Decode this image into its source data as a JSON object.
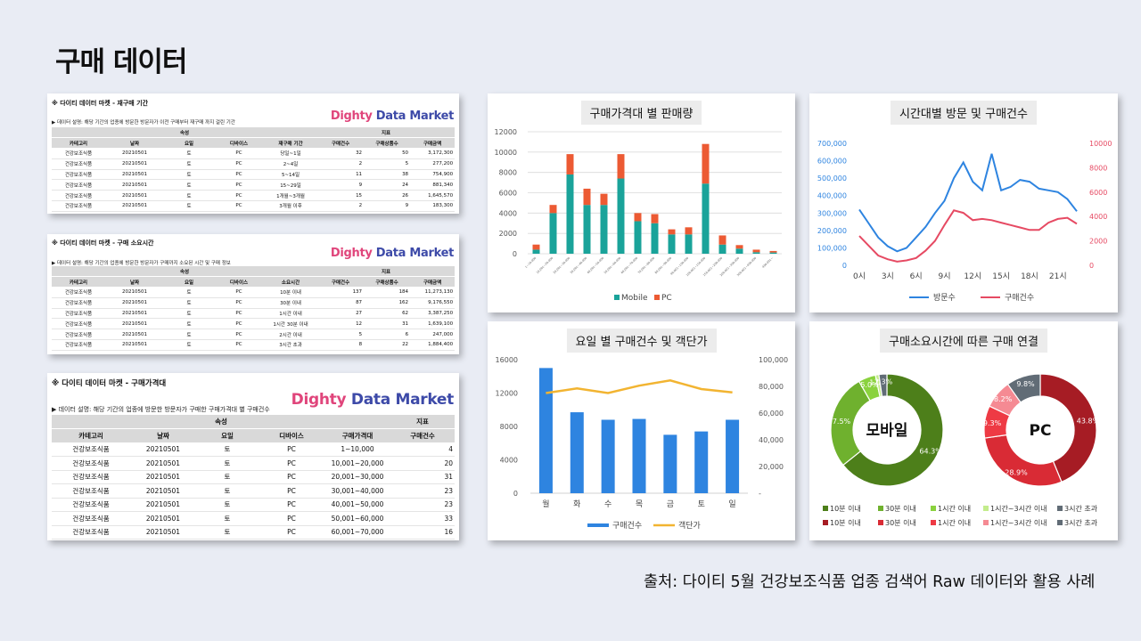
{
  "page": {
    "title": "구매 데이터",
    "source": "출처: 다이티 5월 건강보조식품 업종 검색어 Raw 데이터와 활용 사례"
  },
  "logo": {
    "part1": "Dighty",
    "part2": " Data Market"
  },
  "tables": [
    {
      "title": "※ 다이티 데이터 마켓 - 재구매 기간",
      "desc": "▶ 데이터 설명: 해당 기간의 업종에 방문한 방문자가 이전 구매부터 재구매 까지 걸린 기간",
      "group_headers": [
        "속성",
        "지표"
      ],
      "columns": [
        "카테고리",
        "날짜",
        "요일",
        "디바이스",
        "재구매 기간",
        "구매건수",
        "구매상품수",
        "구매금액"
      ],
      "rows": [
        [
          "건강보조식품",
          "20210501",
          "토",
          "PC",
          "당일~1일",
          "32",
          "50",
          "3,172,300"
        ],
        [
          "건강보조식품",
          "20210501",
          "토",
          "PC",
          "2~4일",
          "2",
          "5",
          "277,200"
        ],
        [
          "건강보조식품",
          "20210501",
          "토",
          "PC",
          "5~14일",
          "11",
          "38",
          "754,900"
        ],
        [
          "건강보조식품",
          "20210501",
          "토",
          "PC",
          "15~29일",
          "9",
          "24",
          "881,340"
        ],
        [
          "건강보조식품",
          "20210501",
          "토",
          "PC",
          "1개월~3개월",
          "15",
          "26",
          "1,645,570"
        ],
        [
          "건강보조식품",
          "20210501",
          "토",
          "PC",
          "3개월 이후",
          "2",
          "9",
          "183,300"
        ]
      ]
    },
    {
      "title": "※ 다이티 데이터 마켓 - 구매 소요시간",
      "desc": "▶ 데이터 설명: 해당 기간의 업종에 방문한 방문자가 구매까지 소요된 시간 및 구매 정보",
      "group_headers": [
        "속성",
        "지표"
      ],
      "columns": [
        "카테고리",
        "날짜",
        "요일",
        "디바이스",
        "소요시간",
        "구매건수",
        "구매상품수",
        "구매금액"
      ],
      "rows": [
        [
          "건강보조식품",
          "20210501",
          "토",
          "PC",
          "10분 이내",
          "137",
          "184",
          "11,273,130"
        ],
        [
          "건강보조식품",
          "20210501",
          "토",
          "PC",
          "30분 이내",
          "87",
          "162",
          "9,176,550"
        ],
        [
          "건강보조식품",
          "20210501",
          "토",
          "PC",
          "1시간 이내",
          "27",
          "62",
          "3,387,250"
        ],
        [
          "건강보조식품",
          "20210501",
          "토",
          "PC",
          "1시간 30분 이내",
          "12",
          "31",
          "1,639,100"
        ],
        [
          "건강보조식품",
          "20210501",
          "토",
          "PC",
          "2시간 이내",
          "5",
          "6",
          "247,000"
        ],
        [
          "건강보조식품",
          "20210501",
          "토",
          "PC",
          "3시간 초과",
          "8",
          "22",
          "1,884,400"
        ]
      ]
    },
    {
      "title": "※ 다이티 데이터 마켓 - 구매가격대",
      "desc": "▶ 데이터 설명: 해당 기간의 업종에 방문한 방문자가 구매한 구매가격대 별 구매건수",
      "group_headers": [
        "속성",
        "지표"
      ],
      "columns": [
        "카테고리",
        "날짜",
        "요일",
        "디바이스",
        "구매가격대",
        "구매건수"
      ],
      "rows": [
        [
          "건강보조식품",
          "20210501",
          "토",
          "PC",
          "1~10,000",
          "4"
        ],
        [
          "건강보조식품",
          "20210501",
          "토",
          "PC",
          "10,001~20,000",
          "20"
        ],
        [
          "건강보조식품",
          "20210501",
          "토",
          "PC",
          "20,001~30,000",
          "31"
        ],
        [
          "건강보조식품",
          "20210501",
          "토",
          "PC",
          "30,001~40,000",
          "23"
        ],
        [
          "건강보조식품",
          "20210501",
          "토",
          "PC",
          "40,001~50,000",
          "23"
        ],
        [
          "건강보조식품",
          "20210501",
          "토",
          "PC",
          "50,001~60,000",
          "33"
        ],
        [
          "건강보조식품",
          "20210501",
          "토",
          "PC",
          "60,001~70,000",
          "16"
        ]
      ]
    }
  ],
  "chart_data": [
    {
      "type": "bar",
      "title": "구매가격대 별 판매량",
      "stacked": true,
      "categories": [
        "1~10,000",
        "10,001~20,000",
        "20,001~30,000",
        "30,001~40,000",
        "40,001~50,000",
        "50,001~60,000",
        "60,001~70,000",
        "70,001~80,000",
        "80,001~90,000",
        "90,001~100,000",
        "100,001~150,000",
        "150,001~200,000",
        "200,001~300,000",
        "300,001~400,000",
        "400,001~"
      ],
      "series": [
        {
          "name": "Mobile",
          "color": "#1aa39a",
          "values": [
            400,
            4000,
            7800,
            4800,
            4800,
            7400,
            3200,
            3000,
            1900,
            1900,
            6900,
            900,
            500,
            150,
            120
          ]
        },
        {
          "name": "PC",
          "color": "#ec5a33",
          "values": [
            500,
            800,
            2000,
            1600,
            1100,
            2400,
            800,
            900,
            500,
            700,
            3900,
            900,
            350,
            250,
            150
          ]
        }
      ],
      "ylim": [
        0,
        12000
      ],
      "yticks": [
        0,
        2000,
        4000,
        6000,
        8000,
        10000,
        12000
      ],
      "legend": "bottom",
      "grid": true
    },
    {
      "type": "line",
      "title": "시간대별 방문 및 구매건수",
      "x": [
        0,
        1,
        2,
        3,
        4,
        5,
        6,
        7,
        8,
        9,
        10,
        11,
        12,
        13,
        14,
        15,
        16,
        17,
        18,
        19,
        20,
        21,
        22,
        23
      ],
      "xticks": [
        {
          "at": 0,
          "label": "0시"
        },
        {
          "at": 3,
          "label": "3시"
        },
        {
          "at": 6,
          "label": "6시"
        },
        {
          "at": 9,
          "label": "9시"
        },
        {
          "at": 12,
          "label": "12시"
        },
        {
          "at": 15,
          "label": "15시"
        },
        {
          "at": 18,
          "label": "18시"
        },
        {
          "at": 21,
          "label": "21시"
        }
      ],
      "series": [
        {
          "name": "방문수",
          "axis": "left",
          "color": "#2e84e0",
          "values": [
            320000,
            240000,
            160000,
            110000,
            80000,
            100000,
            160000,
            220000,
            300000,
            370000,
            500000,
            590000,
            480000,
            430000,
            640000,
            430000,
            450000,
            490000,
            480000,
            440000,
            430000,
            420000,
            380000,
            310000
          ]
        },
        {
          "name": "구매건수",
          "axis": "right",
          "color": "#e64a63",
          "values": [
            2400,
            1600,
            800,
            500,
            300,
            400,
            600,
            1200,
            2000,
            3300,
            4500,
            4300,
            3700,
            3800,
            3700,
            3500,
            3300,
            3100,
            2900,
            2900,
            3500,
            3800,
            3900,
            3400
          ]
        }
      ],
      "ylim_left": [
        0,
        700000
      ],
      "yticks_left": [
        "0",
        "100,000",
        "200,000",
        "300,000",
        "400,000",
        "500,000",
        "600,000",
        "700,000"
      ],
      "ylim_right": [
        0,
        10000
      ],
      "yticks_right": [
        "0",
        "2000",
        "4000",
        "6000",
        "8000",
        "10000"
      ],
      "legend": "bottom"
    },
    {
      "type": "bar",
      "title": "요일 별 구매건수 및 객단가",
      "categories": [
        "월",
        "화",
        "수",
        "목",
        "금",
        "토",
        "일"
      ],
      "series": [
        {
          "name": "구매건수",
          "type": "bar",
          "axis": "left",
          "color": "#2e84e0",
          "values": [
            15000,
            9700,
            8800,
            8900,
            7000,
            7400,
            8800
          ]
        },
        {
          "name": "객단가",
          "type": "line",
          "axis": "right",
          "color": "#f2b431",
          "values": [
            75000,
            78500,
            75000,
            80500,
            84500,
            78000,
            75500
          ]
        }
      ],
      "ylim_left": [
        0,
        16000
      ],
      "yticks_left": [
        "0",
        "4000",
        "8000",
        "12000",
        "16000"
      ],
      "ylim_right": [
        0,
        100000
      ],
      "yticks_right": [
        "-",
        "20,000",
        "40,000",
        "60,000",
        "80,000",
        "100,000"
      ],
      "legend": "bottom"
    },
    {
      "type": "pie",
      "title": "구매소요시간에 따른 구매 연결",
      "donut": true,
      "charts": [
        {
          "label": "모바일",
          "labels": [
            "10분 이내",
            "30분 이내",
            "1시간 이내",
            "1시간~3시간 이내",
            "3시간 초과"
          ],
          "values": [
            64.3,
            27.5,
            5.0,
            1.0,
            2.3
          ],
          "value_labels": [
            "64.3%",
            "27.5%",
            "5.0%",
            "1.0%",
            "2.3%"
          ],
          "colors": [
            "#4d7f1a",
            "#6fb12e",
            "#8ad23e",
            "#c3ec8c",
            "#616c76"
          ]
        },
        {
          "label": "PC",
          "labels": [
            "10분 이내",
            "30분 이내",
            "1시간 이내",
            "1시간~3시간 이내",
            "3시간 초과"
          ],
          "values": [
            43.8,
            28.9,
            9.3,
            8.2,
            9.8
          ],
          "value_labels": [
            "43.8%",
            "28.9%",
            "9.3%",
            "8.2%",
            "9.8%"
          ],
          "colors": [
            "#a61c24",
            "#d92b35",
            "#ee3a44",
            "#f58a93",
            "#616c76"
          ]
        }
      ],
      "legend": "bottom"
    }
  ]
}
